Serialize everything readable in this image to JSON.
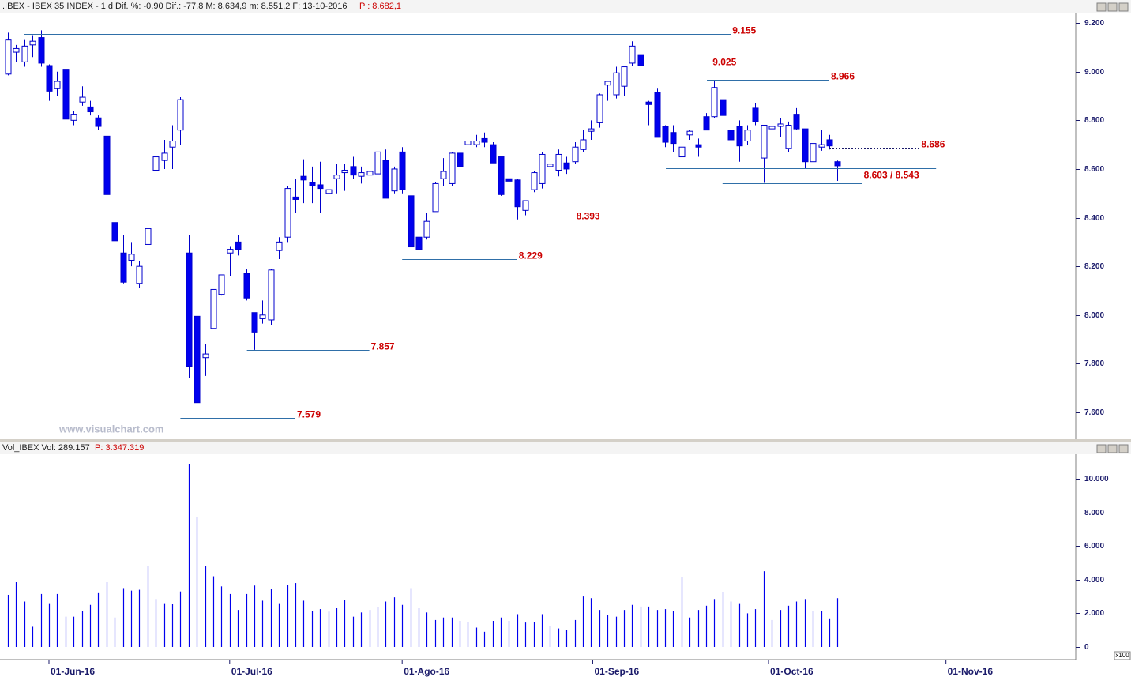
{
  "chart_data": [
    {
      "type": "candlestick",
      "header": ".IBEX - IBEX 35 INDEX - 1 d Dif. %: -0,90 Dif.: -77,8 M: 8.634,9 m: 8.551,2 F: 13-10-2016",
      "header_price": "P : 8.682,1",
      "watermark": "www.visualchart.com",
      "up_color": "#ffffff",
      "down_color": "#0000ee",
      "edge_color": "#0000cc",
      "xlim": [
        -0.96,
        130
      ],
      "ylim": [
        7493,
        9236
      ],
      "yticks": [
        {
          "value": 9200,
          "label": "9.200"
        },
        {
          "value": 9000,
          "label": "9.000"
        },
        {
          "value": 8800,
          "label": "8.800"
        },
        {
          "value": 8600,
          "label": "8.600"
        },
        {
          "value": 8400,
          "label": "8.400"
        },
        {
          "value": 8200,
          "label": "8.200"
        },
        {
          "value": 8000,
          "label": "8.000"
        },
        {
          "value": 7800,
          "label": "7.800"
        },
        {
          "value": 7600,
          "label": "7.600"
        }
      ],
      "open": [
        8990,
        9080,
        9040,
        9110,
        9140,
        9025,
        8930,
        9010,
        8800,
        8875,
        8855,
        8810,
        8735,
        8380,
        8255,
        8225,
        8130,
        8290,
        8595,
        8635,
        8690,
        8760,
        8255,
        7995,
        7825,
        7945,
        8085,
        8255,
        8300,
        8170,
        8010,
        7985,
        7980,
        8265,
        8320,
        8485,
        8570,
        8545,
        8535,
        8500,
        8560,
        8585,
        8610,
        8570,
        8575,
        8580,
        8635,
        8510,
        8670,
        8490,
        8320,
        8320,
        8425,
        8560,
        8540,
        8665,
        8700,
        8700,
        8725,
        8700,
        8650,
        8560,
        8555,
        8430,
        8515,
        8540,
        8610,
        8595,
        8625,
        8630,
        8680,
        8755,
        8790,
        8945,
        8905,
        8940,
        9035,
        9070,
        8875,
        8915,
        8775,
        8750,
        8650,
        8740,
        8700,
        8815,
        8815,
        8885,
        8760,
        8775,
        8715,
        8850,
        8645,
        8765,
        8775,
        8685,
        8825,
        8765,
        8630,
        8690,
        8720,
        8630
      ],
      "high": [
        9160,
        9110,
        9130,
        9150,
        9170,
        9030,
        9000,
        9015,
        8840,
        8940,
        8880,
        8820,
        8740,
        8430,
        8330,
        8300,
        8220,
        8360,
        8665,
        8720,
        8780,
        8895,
        8330,
        8000,
        7880,
        8105,
        8165,
        8280,
        8330,
        8190,
        8010,
        8060,
        8190,
        8320,
        8530,
        8560,
        8640,
        8610,
        8630,
        8590,
        8620,
        8620,
        8650,
        8610,
        8620,
        8720,
        8680,
        8610,
        8690,
        8490,
        8330,
        8420,
        8545,
        8645,
        8670,
        8680,
        8720,
        8740,
        8750,
        8710,
        8650,
        8580,
        8560,
        8470,
        8590,
        8670,
        8640,
        8680,
        8650,
        8710,
        8760,
        8800,
        8910,
        8960,
        9020,
        9020,
        9125,
        9155,
        8880,
        8930,
        8780,
        8780,
        8690,
        8760,
        8725,
        8830,
        8966,
        8890,
        8775,
        8800,
        8780,
        8870,
        8780,
        8790,
        8810,
        8795,
        8850,
        8765,
        8710,
        8760,
        8740,
        8634.9
      ],
      "low": [
        8985,
        9040,
        9020,
        9060,
        9020,
        8880,
        8900,
        8760,
        8780,
        8860,
        8820,
        8760,
        8490,
        8300,
        8130,
        8200,
        8110,
        8280,
        8575,
        8600,
        8600,
        8700,
        7740,
        7579,
        7750,
        7945,
        8080,
        8160,
        8245,
        8060,
        7857,
        7965,
        7960,
        8230,
        8300,
        8420,
        8460,
        8460,
        8420,
        8450,
        8500,
        8510,
        8560,
        8540,
        8490,
        8550,
        8480,
        8500,
        8500,
        8270,
        8229,
        8310,
        8425,
        8530,
        8530,
        8600,
        8650,
        8690,
        8690,
        8630,
        8490,
        8520,
        8393,
        8410,
        8505,
        8520,
        8560,
        8570,
        8580,
        8620,
        8670,
        8720,
        8770,
        8880,
        8890,
        8900,
        9025,
        9025,
        8780,
        8730,
        8690,
        8670,
        8610,
        8720,
        8650,
        8760,
        8810,
        8800,
        8630,
        8630,
        8700,
        8780,
        8543,
        8720,
        8730,
        8670,
        8760,
        8600,
        8560,
        8675,
        8680,
        8551.2
      ],
      "close": [
        9130,
        9095,
        9105,
        9125,
        9035,
        8920,
        8960,
        8805,
        8825,
        8895,
        8835,
        8775,
        8495,
        8305,
        8135,
        8250,
        8200,
        8355,
        8650,
        8665,
        8715,
        8885,
        7790,
        7640,
        7840,
        8105,
        8165,
        8270,
        8270,
        8070,
        7930,
        8000,
        8185,
        8300,
        8520,
        8475,
        8555,
        8530,
        8520,
        8515,
        8575,
        8595,
        8575,
        8585,
        8590,
        8670,
        8480,
        8600,
        8515,
        8280,
        8270,
        8385,
        8540,
        8590,
        8665,
        8610,
        8715,
        8715,
        8710,
        8625,
        8495,
        8550,
        8445,
        8470,
        8585,
        8660,
        8620,
        8660,
        8600,
        8690,
        8720,
        8765,
        8905,
        8960,
        8995,
        9020,
        9105,
        9025,
        8865,
        8730,
        8710,
        8705,
        8690,
        8755,
        8690,
        8760,
        8935,
        8820,
        8720,
        8695,
        8760,
        8795,
        8780,
        8775,
        8785,
        8780,
        8765,
        8630,
        8705,
        8700,
        8695,
        8613
      ],
      "annotations": [
        {
          "label": "9.155",
          "dashed": false,
          "lines": [
            {
              "value": 9155,
              "x": [
                2,
                88
              ]
            }
          ]
        },
        {
          "label": "9.025",
          "dashed": true,
          "lines": [
            {
              "value": 9025,
              "x": [
                77,
                85.6
              ]
            }
          ]
        },
        {
          "label": "8.966",
          "dashed": false,
          "lines": [
            {
              "value": 8966,
              "x": [
                85.1,
                100
              ]
            }
          ]
        },
        {
          "label": "8.686",
          "dashed": true,
          "lines": [
            {
              "value": 8686,
              "x": [
                100,
                111
              ]
            }
          ]
        },
        {
          "label": "8.603 / 8.543",
          "dashed": false,
          "lines": [
            {
              "value": 8603,
              "x": [
                80.1,
                113
              ]
            },
            {
              "value": 8543,
              "x": [
                87,
                104
              ]
            }
          ]
        },
        {
          "label": "8.393",
          "dashed": false,
          "lines": [
            {
              "value": 8393,
              "x": [
                60,
                69
              ]
            }
          ]
        },
        {
          "label": "8.229",
          "dashed": false,
          "lines": [
            {
              "value": 8229,
              "x": [
                48,
                62
              ]
            }
          ]
        },
        {
          "label": "7.857",
          "dashed": false,
          "lines": [
            {
              "value": 7857,
              "x": [
                29.1,
                44
              ]
            }
          ]
        },
        {
          "label": "7.579",
          "dashed": false,
          "lines": [
            {
              "value": 7579,
              "x": [
                21,
                35
              ]
            }
          ]
        }
      ]
    },
    {
      "type": "bar",
      "header": "Vol_IBEX Vol: 289.157",
      "header_price": "P: 3.347.319",
      "unit_note": "x100",
      "color": "#0000ee",
      "xlim": [
        -0.96,
        130
      ],
      "xticks": [
        {
          "value": 5,
          "label": "01-Jun-16"
        },
        {
          "value": 27,
          "label": "01-Jul-16"
        },
        {
          "value": 48,
          "label": "01-Ago-16"
        },
        {
          "value": 71.2,
          "label": "01-Sep-16"
        },
        {
          "value": 92.6,
          "label": "01-Oct-16"
        },
        {
          "value": 114.2,
          "label": "01-Nov-16"
        }
      ],
      "ylim": [
        -751,
        11455
      ],
      "yticks": [
        {
          "value": 10000,
          "label": "10.000"
        },
        {
          "value": 8000,
          "label": "8.000"
        },
        {
          "value": 6000,
          "label": "6.000"
        },
        {
          "value": 4000,
          "label": "4.000"
        },
        {
          "value": 2000,
          "label": "2.000"
        },
        0
      ],
      "values": [
        3100,
        3850,
        2700,
        1200,
        3150,
        2600,
        3150,
        1800,
        1800,
        2150,
        2500,
        3200,
        3850,
        1750,
        3500,
        3350,
        3400,
        4800,
        2850,
        2600,
        2550,
        3300,
        10850,
        7700,
        4800,
        4200,
        3600,
        3150,
        2200,
        3150,
        3650,
        2750,
        3450,
        2600,
        3700,
        3800,
        2750,
        2150,
        2250,
        2100,
        2300,
        2800,
        1800,
        2050,
        2200,
        2350,
        2700,
        2950,
        2500,
        3500,
        2300,
        2050,
        1600,
        1750,
        1750,
        1550,
        1500,
        1150,
        900,
        1550,
        1750,
        1550,
        1950,
        1450,
        1500,
        1950,
        1250,
        1100,
        1000,
        1600,
        3000,
        2900,
        2200,
        1900,
        1800,
        2200,
        2500,
        2400,
        2400,
        2200,
        2250,
        2150,
        4150,
        1750,
        2200,
        2450,
        2850,
        3250,
        2700,
        2600,
        2000,
        2250,
        4500,
        1600,
        2200,
        2450,
        2700,
        2850,
        2150,
        2150,
        1700,
        2900
      ]
    }
  ]
}
